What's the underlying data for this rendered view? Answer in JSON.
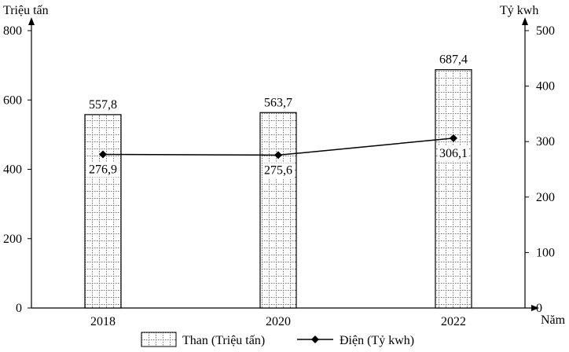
{
  "chart_data": {
    "type": "bar+line",
    "categories": [
      "2018",
      "2020",
      "2022"
    ],
    "series": [
      {
        "name": "Than (Triệu tấn)",
        "type": "bar",
        "axis": "left",
        "values": [
          557.8,
          563.7,
          687.4
        ],
        "labels": [
          "557,8",
          "563,7",
          "687,4"
        ]
      },
      {
        "name": "Điện (Tỷ kwh)",
        "type": "line",
        "axis": "right",
        "values": [
          276.9,
          275.6,
          306.1
        ],
        "labels": [
          "276,9",
          "275,6",
          "306,1"
        ]
      }
    ],
    "y_left": {
      "label": "Triệu tấn",
      "ylim": [
        0,
        800
      ],
      "ticks": [
        0,
        200,
        400,
        600,
        800
      ]
    },
    "y_right": {
      "label": "Tỷ kwh",
      "ylim": [
        0,
        500
      ],
      "ticks": [
        0,
        100,
        200,
        300,
        400,
        500
      ]
    },
    "xlabel": "Năm",
    "legend_position": "bottom",
    "grid": false
  }
}
